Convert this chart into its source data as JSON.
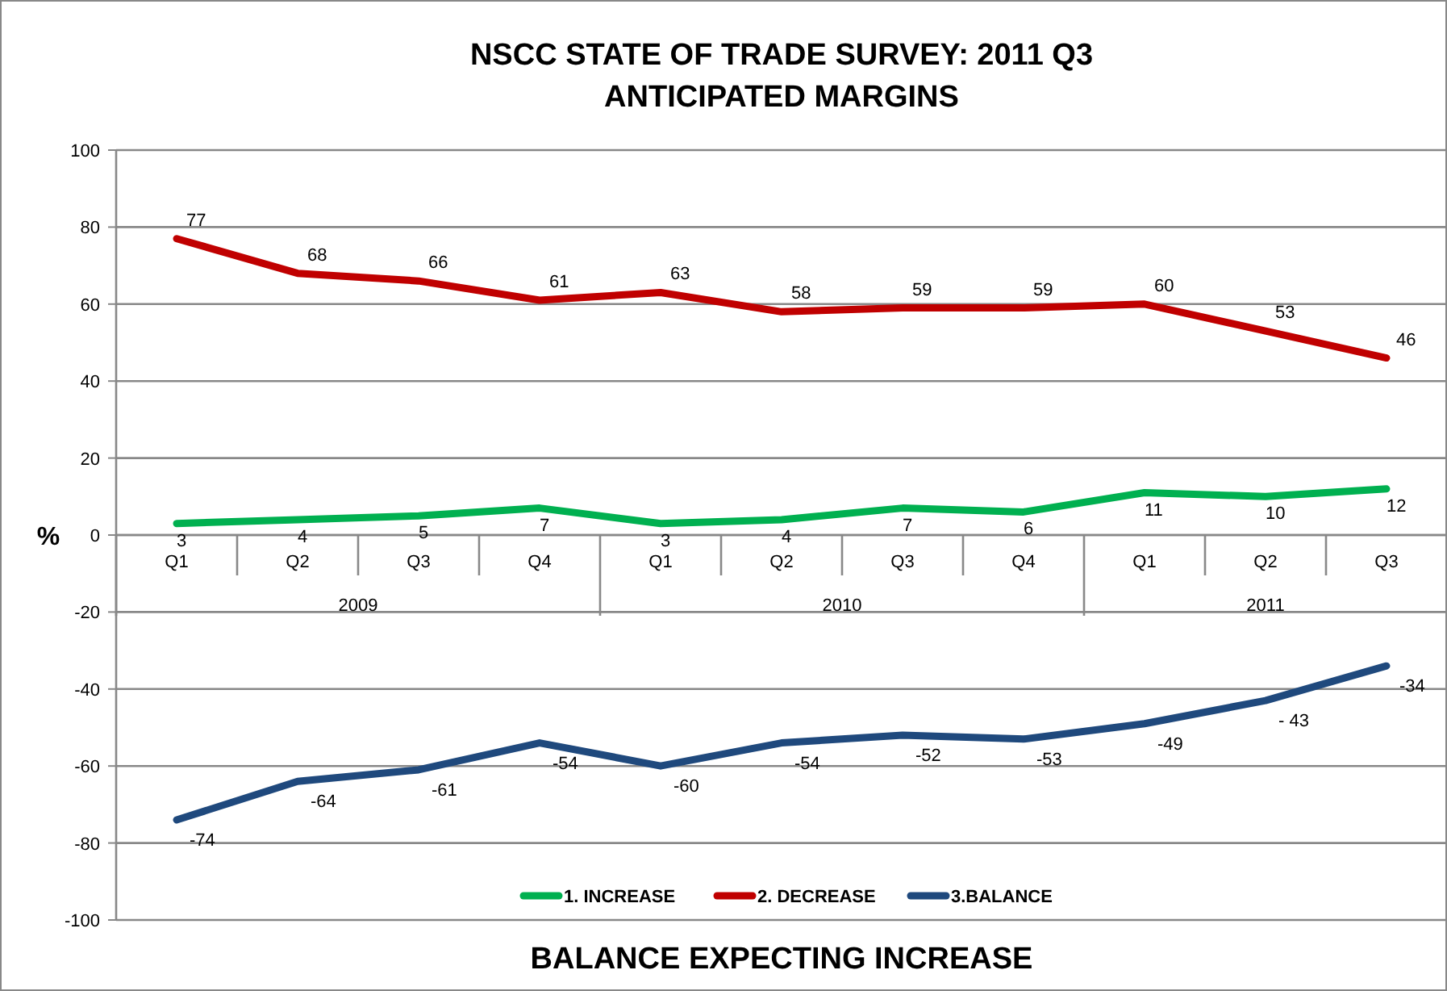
{
  "chart_data": {
    "type": "line",
    "title": "NSCC STATE OF TRADE SURVEY: 2011 Q3\nANTICIPATED MARGINS",
    "xlabel": "BALANCE EXPECTING INCREASE",
    "ylabel": "%",
    "categories": [
      "Q1",
      "Q2",
      "Q3",
      "Q4",
      "Q1",
      "Q2",
      "Q3",
      "Q4",
      "Q1",
      "Q2",
      "Q3"
    ],
    "annotations": [
      "2009",
      "2010",
      "2011"
    ],
    "series": [
      {
        "name": "1. INCREASE",
        "color": "#00b050",
        "values": [
          3,
          4,
          5,
          7,
          3,
          4,
          7,
          6,
          11,
          10,
          12
        ]
      },
      {
        "name": "2. DECREASE",
        "color": "#c00000",
        "values": [
          77,
          68,
          66,
          61,
          63,
          58,
          59,
          59,
          60,
          53,
          46
        ]
      },
      {
        "name": "3.BALANCE",
        "color": "#1f497d",
        "values": [
          -74,
          -64,
          -61,
          -54,
          -60,
          -54,
          -52,
          -53,
          -49,
          -43,
          -34
        ],
        "value_labels": [
          "-74",
          "-64",
          "-61",
          "-54",
          "-60",
          "-54",
          "-52",
          "-53",
          "-49",
          "- 43",
          "-34"
        ]
      }
    ],
    "ylim": [
      -100,
      100
    ],
    "yticks": [
      -100,
      -80,
      -60,
      -40,
      -20,
      0,
      20,
      40,
      60,
      80,
      100
    ],
    "grid": "y",
    "legend": "bottom",
    "data_labels": true,
    "marker": "none",
    "line_style": "solid"
  }
}
